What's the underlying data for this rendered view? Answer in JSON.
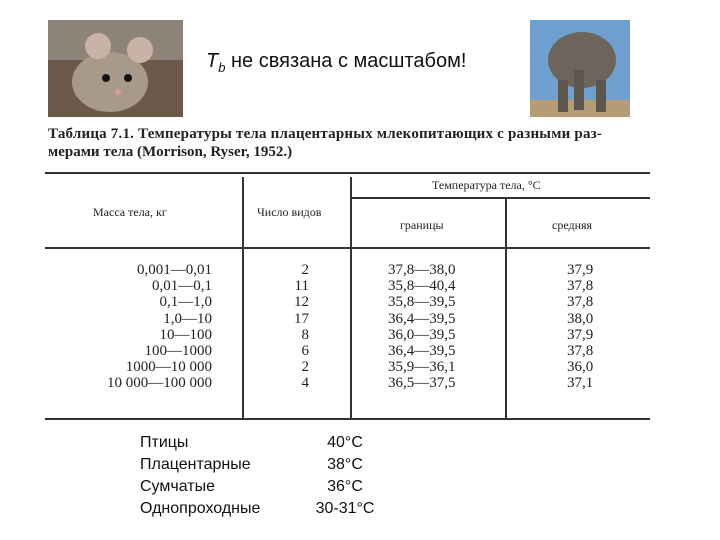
{
  "header": {
    "title_main": "T",
    "title_sub": "b",
    "title_rest": "не связана с масштабом!"
  },
  "table": {
    "caption": [
      "Таблица 7.1. Температуры тела плацентарных млекопитающих с разными раз-",
      "мерами тела (Morrison, Ryser, 1952.)"
    ],
    "columns": {
      "mass": "Масса тела, кг",
      "count": "Число видов",
      "temperature": "Температура тела, °С",
      "range": "границы",
      "mean": "средняя"
    },
    "rows": [
      [
        "0,001—0,01",
        "2",
        "37,8—38,0",
        "37,9"
      ],
      [
        "0,01—0,1",
        "11",
        "35,8—40,4",
        "37,8"
      ],
      [
        "0,1—1,0",
        "12",
        "35,8—39,5",
        "37,8"
      ],
      [
        "1,0—10",
        "17",
        "36,4—39,5",
        "38,0"
      ],
      [
        "10—100",
        "8",
        "36,0—39,5",
        "37,9"
      ],
      [
        "100—1000",
        "6",
        "36,4—39,5",
        "37,8"
      ],
      [
        "1000—10 000",
        "2",
        "35,9—36,1",
        "36,0"
      ],
      [
        "10 000—100 000",
        "4",
        "36,5—37,5",
        "37,1"
      ]
    ]
  },
  "groups": [
    [
      "Птицы",
      "40°С"
    ],
    [
      "Плацентарные",
      "38°С"
    ],
    [
      "Сумчатые",
      "36°С"
    ],
    [
      "Однопроходные",
      "30-31°С"
    ]
  ]
}
